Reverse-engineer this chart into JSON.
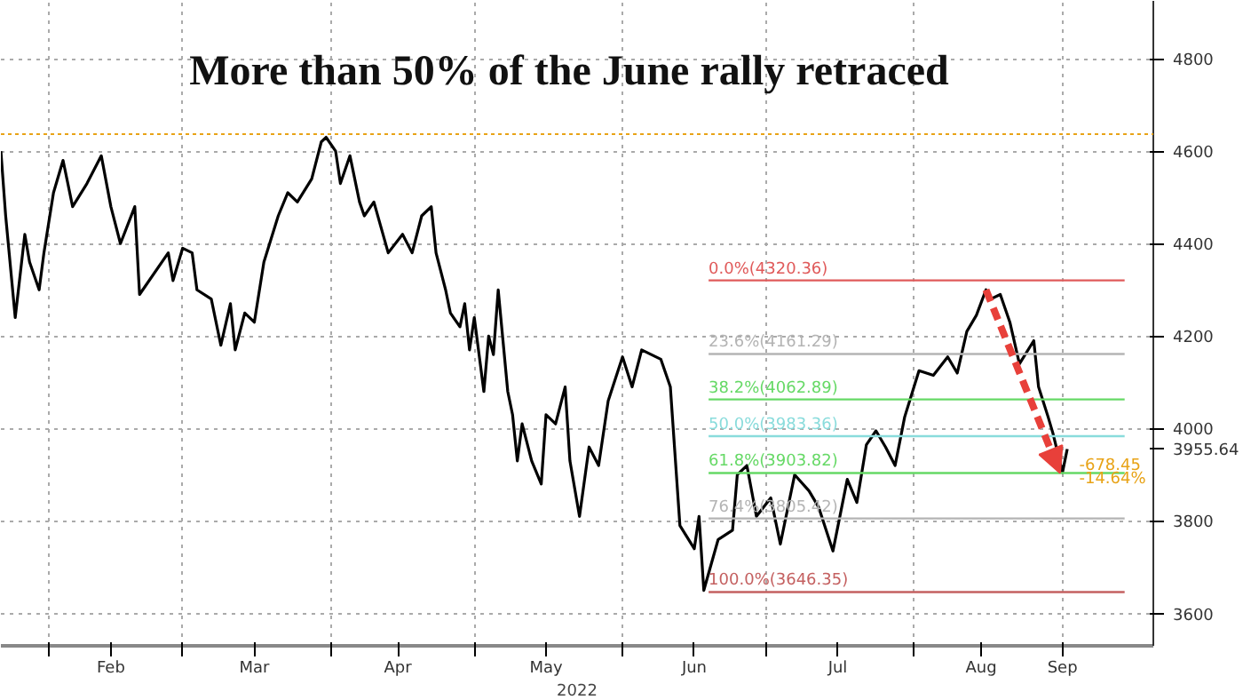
{
  "chart_data": {
    "type": "line",
    "title": "More than 50% of the June rally retraced",
    "xlabel": "2022",
    "series": [
      {
        "color": "#000000",
        "x": [
          "2022-01-22",
          "2022-01-23",
          "2022-01-25",
          "2022-01-27",
          "2022-01-28",
          "2022-01-30",
          "2022-01-31",
          "2022-02-02",
          "2022-02-04",
          "2022-02-06",
          "2022-02-09",
          "2022-02-12",
          "2022-02-14",
          "2022-02-16",
          "2022-02-19",
          "2022-02-20",
          "2022-02-26",
          "2022-02-27",
          "2022-03-01",
          "2022-03-03",
          "2022-03-04",
          "2022-03-07",
          "2022-03-09",
          "2022-03-11",
          "2022-03-12",
          "2022-03-14",
          "2022-03-16",
          "2022-03-18",
          "2022-03-21",
          "2022-03-23",
          "2022-03-25",
          "2022-03-28",
          "2022-03-30",
          "2022-03-31",
          "2022-04-02",
          "2022-04-03",
          "2022-04-05",
          "2022-04-07",
          "2022-04-08",
          "2022-04-10",
          "2022-04-13",
          "2022-04-16",
          "2022-04-18",
          "2022-04-20",
          "2022-04-22",
          "2022-04-23",
          "2022-04-25",
          "2022-04-26",
          "2022-04-28",
          "2022-04-29",
          "2022-04-30",
          "2022-05-01",
          "2022-05-03",
          "2022-05-04",
          "2022-05-05",
          "2022-05-06",
          "2022-05-08",
          "2022-05-09",
          "2022-05-10",
          "2022-05-11",
          "2022-05-13",
          "2022-05-15",
          "2022-05-16",
          "2022-05-18",
          "2022-05-20",
          "2022-05-21",
          "2022-05-23",
          "2022-05-25",
          "2022-05-27",
          "2022-05-29",
          "2022-06-01",
          "2022-06-03",
          "2022-06-05",
          "2022-06-09",
          "2022-06-11",
          "2022-06-13",
          "2022-06-16",
          "2022-06-17",
          "2022-06-18",
          "2022-06-21",
          "2022-06-24",
          "2022-06-25",
          "2022-06-27",
          "2022-06-29",
          "2022-07-02",
          "2022-07-04",
          "2022-07-07",
          "2022-07-10",
          "2022-07-12",
          "2022-07-15",
          "2022-07-18",
          "2022-07-20",
          "2022-07-22",
          "2022-07-24",
          "2022-07-26",
          "2022-07-28",
          "2022-07-30",
          "2022-08-02",
          "2022-08-05",
          "2022-08-08",
          "2022-08-10",
          "2022-08-12",
          "2022-08-14",
          "2022-08-16",
          "2022-08-17",
          "2022-08-19",
          "2022-08-21",
          "2022-08-23",
          "2022-08-26",
          "2022-08-27",
          "2022-08-29",
          "2022-08-30",
          "2022-09-01",
          "2022-09-02"
        ],
        "values": [
          4600,
          4460,
          4240,
          4420,
          4360,
          4300,
          4380,
          4510,
          4580,
          4480,
          4530,
          4590,
          4480,
          4400,
          4480,
          4290,
          4380,
          4320,
          4390,
          4380,
          4300,
          4280,
          4180,
          4270,
          4170,
          4250,
          4230,
          4360,
          4460,
          4510,
          4490,
          4540,
          4620,
          4630,
          4600,
          4530,
          4590,
          4490,
          4460,
          4490,
          4380,
          4420,
          4380,
          4460,
          4480,
          4380,
          4300,
          4250,
          4220,
          4270,
          4170,
          4240,
          4080,
          4200,
          4160,
          4300,
          4080,
          4030,
          3930,
          4010,
          3930,
          3880,
          4030,
          4010,
          4090,
          3930,
          3810,
          3960,
          3920,
          4060,
          4155,
          4090,
          4170,
          4150,
          4090,
          3790,
          3740,
          3810,
          3650,
          3760,
          3780,
          3900,
          3920,
          3810,
          3850,
          3750,
          3900,
          3865,
          3830,
          3735,
          3890,
          3840,
          3965,
          3995,
          3960,
          3920,
          4025,
          4125,
          4115,
          4155,
          4120,
          4210,
          4245,
          4300,
          4280,
          4290,
          4230,
          4140,
          4190,
          4090,
          4025,
          3990,
          3905,
          3955.64
        ]
      },
      {
        "name": "0.0%(4320.36)",
        "color": "#e05a5a",
        "x": [
          "2022-06-19",
          "2022-09-14"
        ],
        "values": [
          4320.36,
          4320.36
        ]
      },
      {
        "name": "23.6%(4161.29)",
        "color": "#b4b4b4",
        "x": [
          "2022-06-19",
          "2022-09-14"
        ],
        "values": [
          4161.29,
          4161.29
        ]
      },
      {
        "name": "38.2%(4062.89)",
        "color": "#66d966",
        "x": [
          "2022-06-19",
          "2022-09-14"
        ],
        "values": [
          4062.89,
          4062.89
        ]
      },
      {
        "name": "50.0%(3983.36)",
        "color": "#8adcdc",
        "x": [
          "2022-06-19",
          "2022-09-14"
        ],
        "values": [
          3983.36,
          3983.36
        ]
      },
      {
        "name": "61.8%(3903.82)",
        "color": "#66d966",
        "x": [
          "2022-06-19",
          "2022-09-14"
        ],
        "values": [
          3903.82,
          3903.82
        ]
      },
      {
        "name": "76.4%(3805.42)",
        "color": "#b4b4b4",
        "x": [
          "2022-06-19",
          "2022-09-14"
        ],
        "values": [
          3805.42,
          3805.42
        ]
      },
      {
        "name": "100.0%(3646.35)",
        "color": "#c46060",
        "x": [
          "2022-06-19",
          "2022-09-14"
        ],
        "values": [
          3646.35,
          3646.35
        ]
      }
    ],
    "ref_lines": [
      {
        "axis": "y",
        "value": 4637,
        "color": "#e8a317",
        "line_style": "dotted"
      }
    ],
    "annotations": [
      {
        "text": "-678.45",
        "x": "2022-09-03",
        "y": 3930
      },
      {
        "text": "-14.64%",
        "x": "2022-09-03",
        "y": 3890
      }
    ],
    "xlim": [
      "2022-01-22",
      "2022-09-20"
    ],
    "xticks": [
      {
        "value": "2022-02-01",
        "label": null
      },
      {
        "value": "2022-02-14",
        "label": "Feb"
      },
      {
        "value": "2022-03-01",
        "label": null
      },
      {
        "value": "2022-03-16",
        "label": "Mar"
      },
      {
        "value": "2022-04-01",
        "label": null
      },
      {
        "value": "2022-04-15",
        "label": "Apr"
      },
      {
        "value": "2022-05-01",
        "label": null
      },
      {
        "value": "2022-05-16",
        "label": "May"
      },
      {
        "value": "2022-06-01",
        "label": null
      },
      {
        "value": "2022-06-16",
        "label": "Jun"
      },
      {
        "value": "2022-07-01",
        "label": null
      },
      {
        "value": "2022-07-16",
        "label": "Jul"
      },
      {
        "value": "2022-08-01",
        "label": null
      },
      {
        "value": "2022-08-15",
        "label": "Aug"
      },
      {
        "value": "2022-09-01",
        "label": "Sep"
      }
    ],
    "ylim": [
      3530,
      4925
    ],
    "yticks": [
      3600,
      3800,
      {
        "value": 3955.64,
        "label": "3955.64"
      },
      4000,
      4200,
      4400,
      4600,
      4800
    ],
    "grid": true,
    "line_style": "solid",
    "marker": "none"
  }
}
